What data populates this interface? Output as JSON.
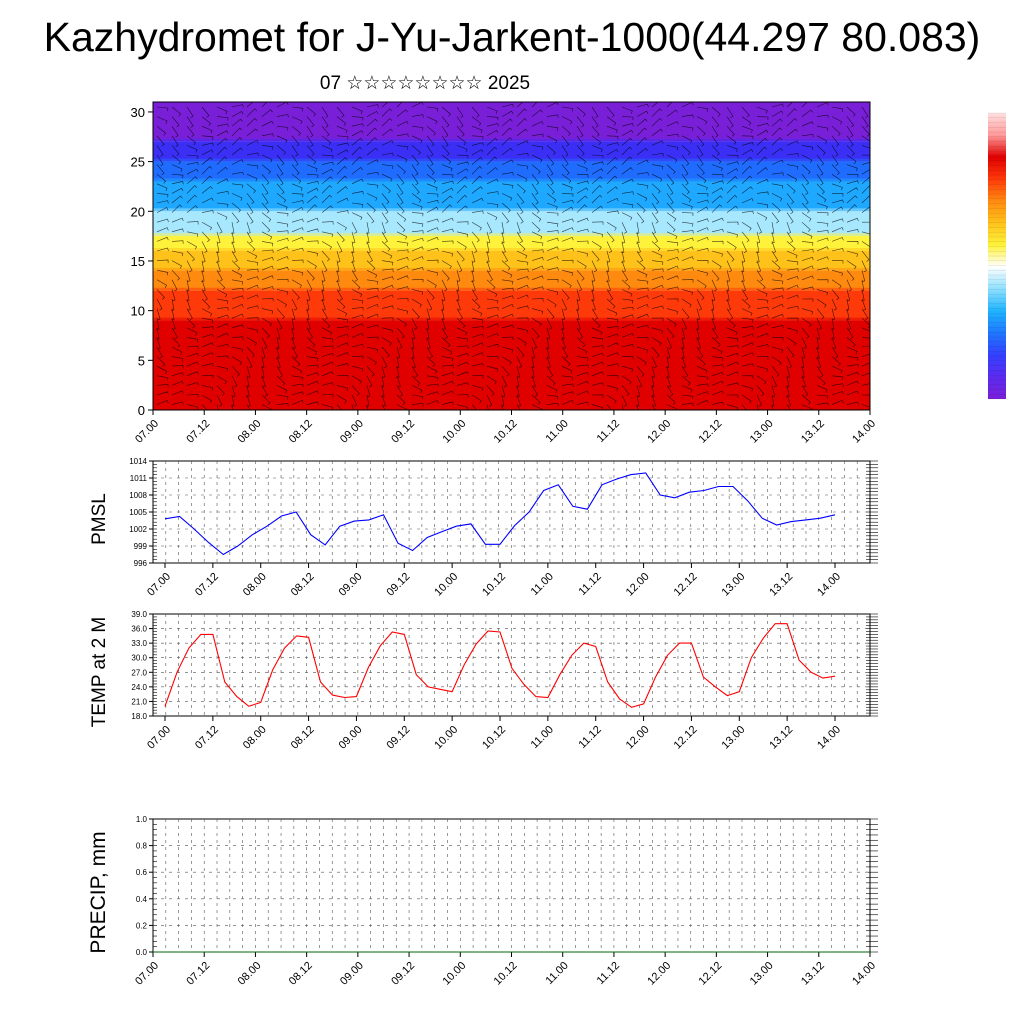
{
  "header": {
    "title": "Kazhydromet for J-Yu-Jarkent-1000(44.297 80.083)",
    "subtitle": "07 ☆☆☆☆☆☆☆☆ 2025"
  },
  "colors": {
    "pmsl_line": "#0000ff",
    "temp_line": "#ff0000",
    "precip_line": "#006400",
    "axis": "#000000",
    "grid": "#555555"
  },
  "chart_data": [
    {
      "type": "heatmap",
      "name": "vertical-profile",
      "description_free": true,
      "x_tick_labels": [
        "07.00",
        "07.12",
        "08.00",
        "08.12",
        "09.00",
        "09.12",
        "10.00",
        "10.12",
        "11.00",
        "11.12",
        "12.00",
        "12.12",
        "13.00",
        "13.12",
        "14.00"
      ],
      "y_ticks": [
        0,
        5,
        10,
        15,
        20,
        25,
        30
      ],
      "ylim": [
        0,
        31
      ],
      "colorbar_colors": [
        "#7a1fd8",
        "#5b2bf0",
        "#3340ff",
        "#1f78ff",
        "#1fb4ff",
        "#8fe0ff",
        "#ffffff",
        "#fff23a",
        "#ffc21a",
        "#ff8a10",
        "#ff3a0a",
        "#e00000",
        "#ff9a9a",
        "#ffe0e0"
      ],
      "bands": [
        {
          "from": 27,
          "to": 31,
          "color": "#7a1fd8"
        },
        {
          "from": 25,
          "to": 27,
          "color": "#3b2ff5"
        },
        {
          "from": 23,
          "to": 25,
          "color": "#1f6cff"
        },
        {
          "from": 20,
          "to": 23,
          "color": "#1fa8ff"
        },
        {
          "from": 17.5,
          "to": 20,
          "color": "#a8e8ff"
        },
        {
          "from": 16,
          "to": 17.5,
          "color": "#fff23a"
        },
        {
          "from": 14,
          "to": 16,
          "color": "#ffc21a"
        },
        {
          "from": 12,
          "to": 14,
          "color": "#ff8a10"
        },
        {
          "from": 9,
          "to": 12,
          "color": "#ff3a0a"
        },
        {
          "from": 0,
          "to": 9,
          "color": "#e00000"
        }
      ]
    },
    {
      "type": "line",
      "name": "pmsl",
      "ylabel": "PMSL",
      "y_ticks": [
        996,
        999,
        1002,
        1005,
        1008,
        1011,
        1014
      ],
      "ylim": [
        996,
        1014
      ],
      "x_tick_labels": [
        "07.00",
        "07.12",
        "08.00",
        "08.12",
        "09.00",
        "09.12",
        "10.00",
        "10.12",
        "11.00",
        "11.12",
        "12.00",
        "12.12",
        "13.00",
        "13.12",
        "14.00"
      ],
      "series": [
        {
          "values": [
            1003.8,
            1004.2,
            1002.0,
            999.6,
            997.5,
            999.0,
            1001.0,
            1002.5,
            1004.3,
            1005.0,
            1001.0,
            999.2,
            1002.5,
            1003.4,
            1003.6,
            1004.5,
            999.5,
            998.2,
            1000.5,
            1001.5,
            1002.5,
            1002.9,
            999.3,
            999.3,
            1002.6,
            1005.0,
            1008.8,
            1009.8,
            1006.0,
            1005.5,
            1009.8,
            1010.8,
            1011.6,
            1011.9,
            1008.0,
            1007.5,
            1008.5,
            1008.8,
            1009.5,
            1009.5,
            1007.0,
            1003.9,
            1002.7,
            1003.3,
            1003.6,
            1003.9,
            1004.5
          ]
        }
      ]
    },
    {
      "type": "line",
      "name": "temp-2m",
      "ylabel": "TEMP at 2 M",
      "y_ticks": [
        "18.0",
        "21.0",
        "24.0",
        "27.0",
        "30.0",
        "33.0",
        "36.0",
        "39.0"
      ],
      "ylim": [
        18,
        39
      ],
      "x_tick_labels": [
        "07.00",
        "07.12",
        "08.00",
        "08.12",
        "09.00",
        "09.12",
        "10.00",
        "10.12",
        "11.00",
        "11.12",
        "12.00",
        "12.12",
        "13.00",
        "13.12",
        "14.00"
      ],
      "series": [
        {
          "values": [
            20.0,
            27.0,
            32.0,
            34.8,
            34.8,
            25.0,
            22.0,
            20.0,
            20.8,
            27.5,
            32.0,
            34.5,
            34.2,
            25.0,
            22.3,
            21.8,
            22.0,
            28.0,
            32.5,
            35.3,
            34.8,
            26.5,
            24.0,
            23.5,
            23.0,
            28.5,
            32.8,
            35.5,
            35.3,
            27.8,
            24.5,
            22.0,
            21.8,
            26.5,
            30.5,
            33.0,
            32.3,
            25.0,
            21.5,
            19.8,
            20.5,
            26.0,
            30.5,
            33.0,
            33.0,
            26.0,
            24.0,
            22.2,
            23.0,
            30.0,
            34.0,
            37.0,
            37.0,
            29.5,
            27.0,
            25.8,
            26.2
          ]
        }
      ]
    },
    {
      "type": "line",
      "name": "precip",
      "ylabel": "PRECIP, mm",
      "y_ticks": [
        "0.0",
        "0.2",
        "0.4",
        "0.6",
        "0.8",
        "1.0"
      ],
      "ylim": [
        0,
        1
      ],
      "x_tick_labels": [
        "07.00",
        "07.12",
        "08.00",
        "08.12",
        "09.00",
        "09.12",
        "10.00",
        "10.12",
        "11.00",
        "11.12",
        "12.00",
        "12.12",
        "13.00",
        "13.12",
        "14.00"
      ],
      "series": [
        {
          "values": [
            0,
            0,
            0,
            0,
            0,
            0,
            0,
            0,
            0,
            0,
            0,
            0,
            0,
            0,
            0,
            0,
            0,
            0,
            0,
            0,
            0,
            0,
            0,
            0,
            0,
            0,
            0,
            0,
            0
          ]
        }
      ]
    }
  ]
}
